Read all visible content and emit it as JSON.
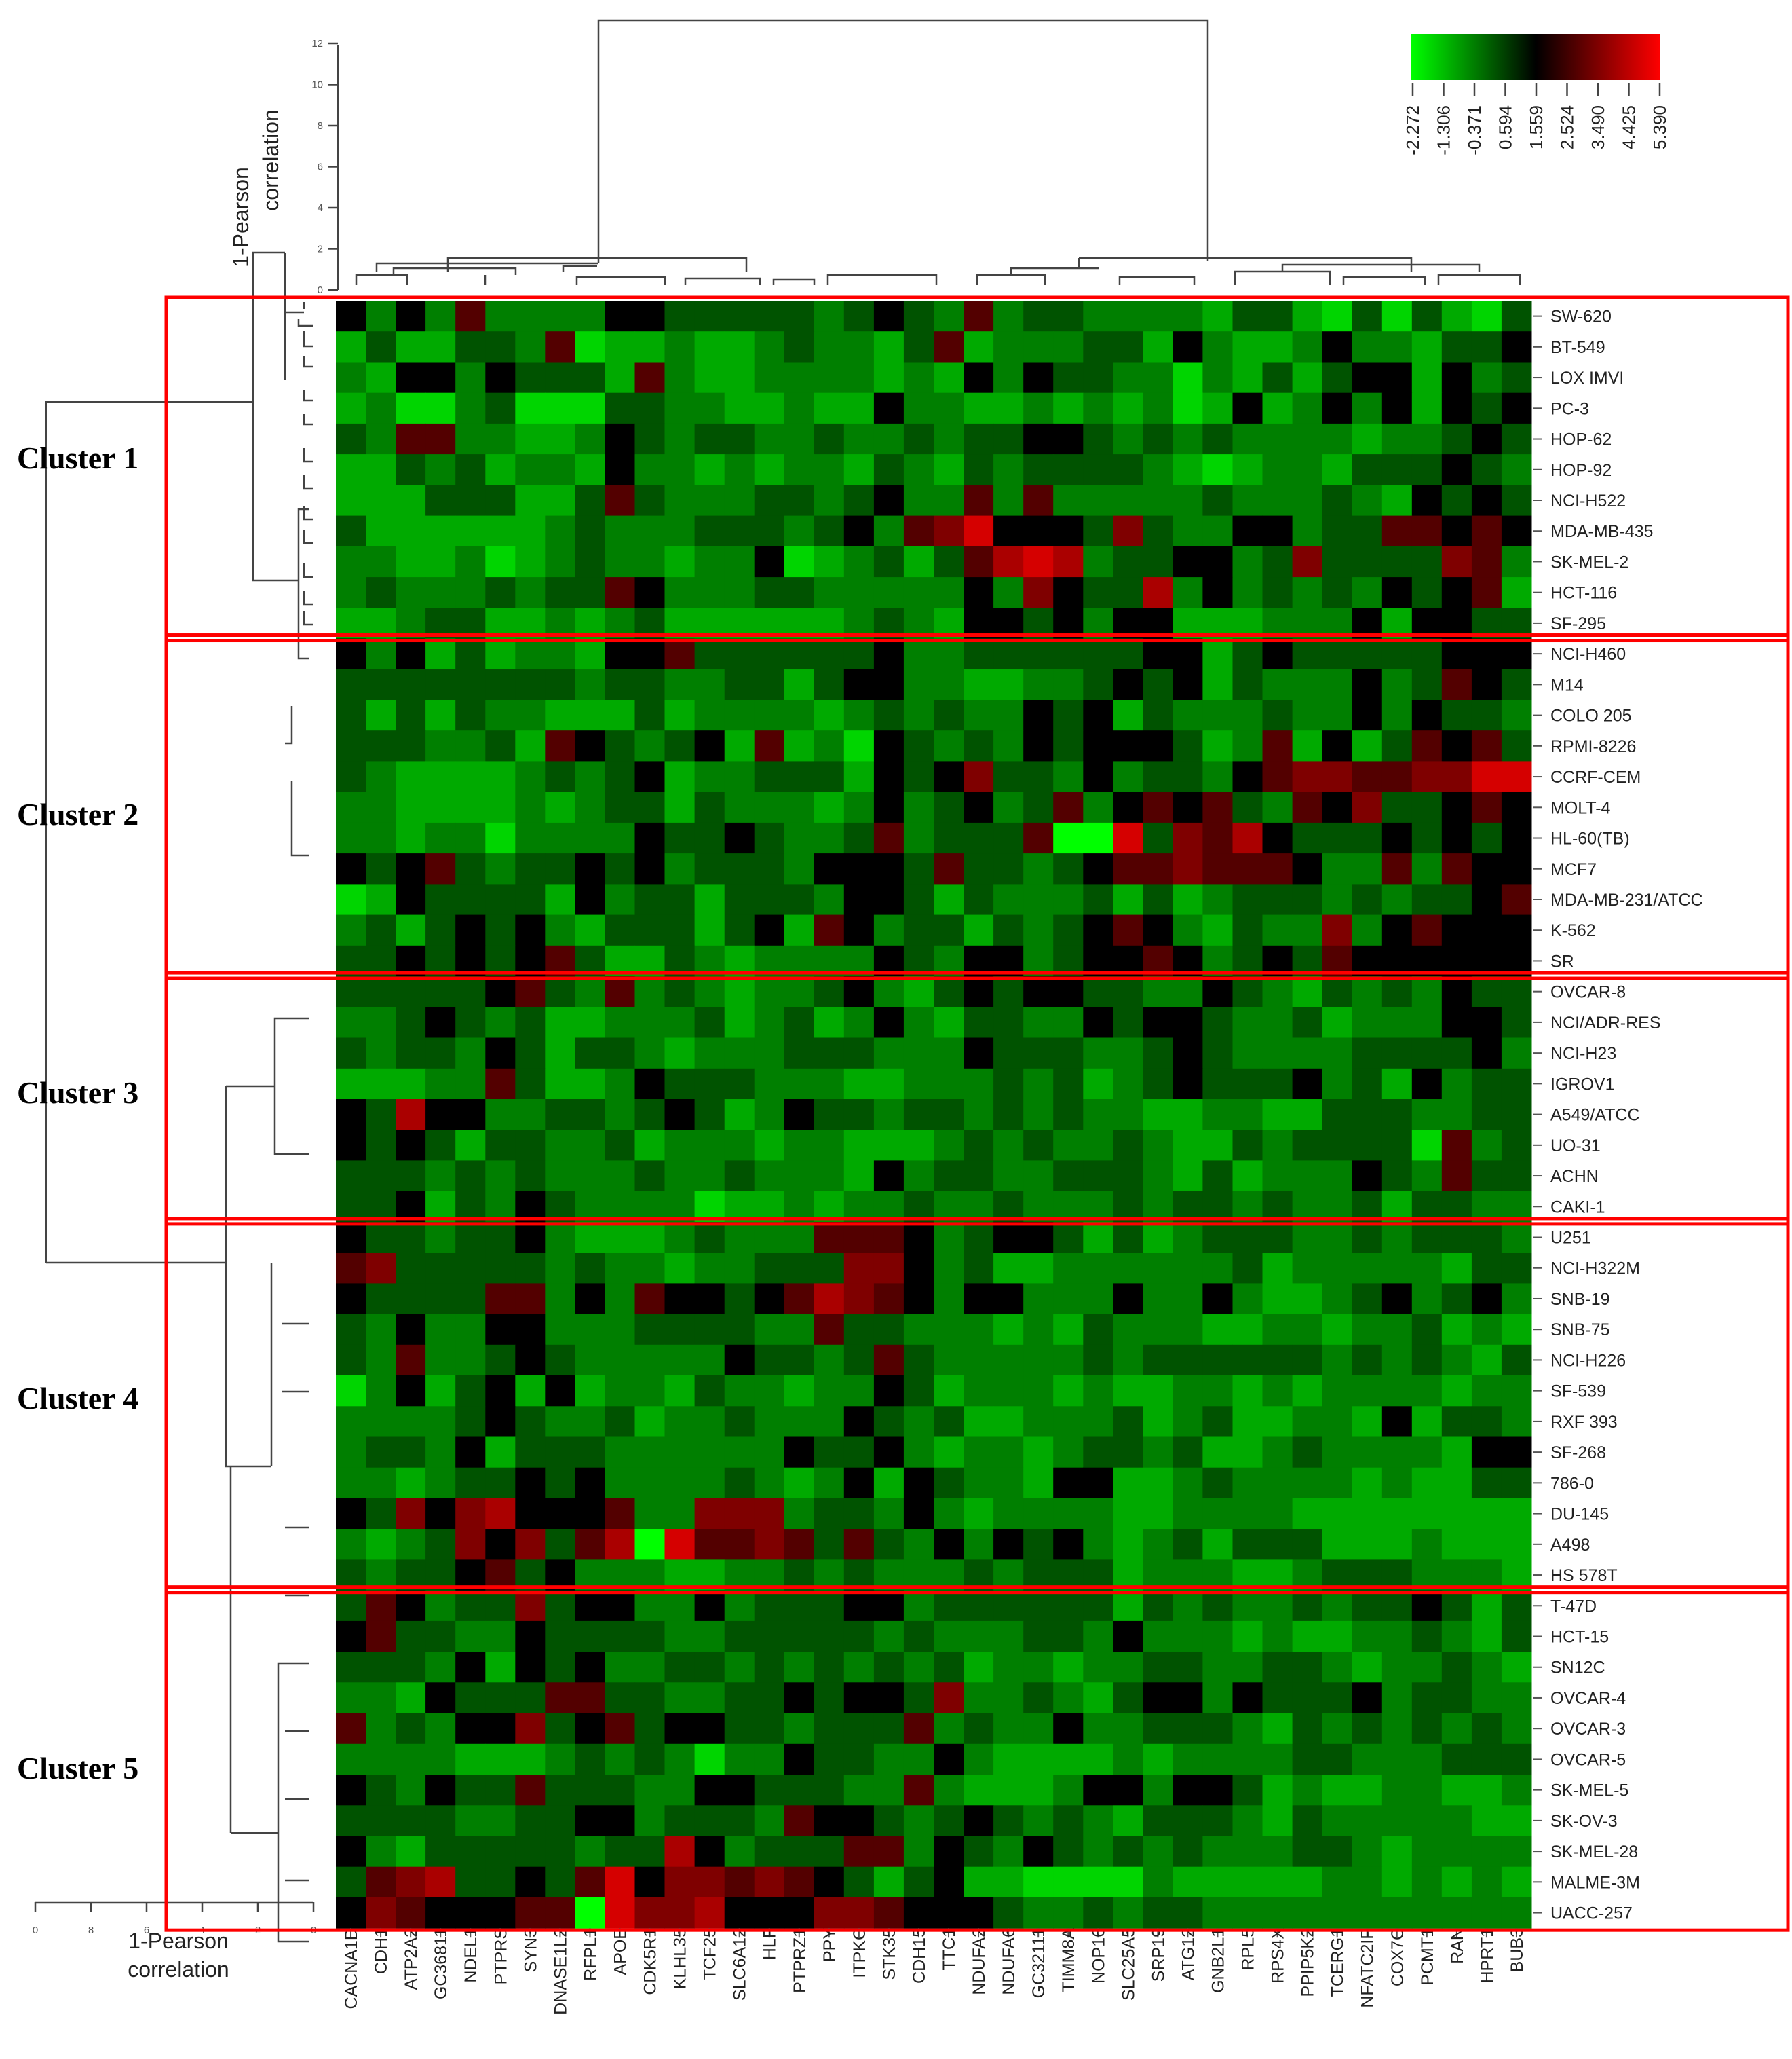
{
  "chart_data": {
    "type": "heatmap",
    "title": "",
    "xlabel": "",
    "ylabel": "",
    "columns": [
      "CACNA1D",
      "CDH1",
      "ATP2A2",
      "GC36811",
      "NDEL1",
      "PTPRS",
      "SYN3",
      "DNASE1L2",
      "RFPL1",
      "APOE",
      "CDK5R1",
      "KLHL35",
      "TCF25",
      "SLC6A12",
      "HLF",
      "PTPRZ1",
      "PPY",
      "ITPKC",
      "STK35",
      "CDH15",
      "TTC1",
      "NDUFA2",
      "NDUFA6",
      "GC32111",
      "TIMM8A",
      "NOP16",
      "SLC25A5",
      "SRP19",
      "ATG12",
      "GNB2L1",
      "RPL5",
      "RPS4X",
      "PPIP5K2",
      "TCERG1",
      "NFATC2IP",
      "COX7C",
      "PCMT1",
      "RAN",
      "HPRT1",
      "BUB3"
    ],
    "rows": [
      "SW-620",
      "BT-549",
      "LOX IMVI",
      "PC-3",
      "HOP-62",
      "HOP-92",
      "NCI-H522",
      "MDA-MB-435",
      "SK-MEL-2",
      "HCT-116",
      "SF-295",
      "NCI-H460",
      "M14",
      "COLO 205",
      "RPMI-8226",
      "CCRF-CEM",
      "MOLT-4",
      "HL-60(TB)",
      "MCF7",
      "MDA-MB-231/ATCC",
      "K-562",
      "SR",
      "OVCAR-8",
      "NCI/ADR-RES",
      "NCI-H23",
      "IGROV1",
      "A549/ATCC",
      "UO-31",
      "ACHN",
      "CAKI-1",
      "U251",
      "NCI-H322M",
      "SNB-19",
      "SNB-75",
      "NCI-H226",
      "SF-539",
      "RXF 393",
      "SF-268",
      "786-0",
      "DU-145",
      "A498",
      "HS 578T",
      "T-47D",
      "HCT-15",
      "SN12C",
      "OVCAR-4",
      "OVCAR-3",
      "OVCAR-5",
      "SK-MEL-5",
      "SK-OV-3",
      "SK-MEL-28",
      "MALME-3M",
      "UACC-257"
    ],
    "clusters": [
      {
        "name": "Cluster 1",
        "start": 0,
        "end": 10
      },
      {
        "name": "Cluster 2",
        "start": 11,
        "end": 21
      },
      {
        "name": "Cluster 3",
        "start": 22,
        "end": 29
      },
      {
        "name": "Cluster 4",
        "start": 30,
        "end": 41
      },
      {
        "name": "Cluster 5",
        "start": 42,
        "end": 52
      }
    ],
    "colorscale": {
      "colors": [
        "#00ff00",
        "#000000",
        "#ff0000"
      ],
      "min": -2.272,
      "mid": 1.559,
      "max": 5.39,
      "ticks": [
        "-2.272",
        "-1.306",
        "-0.371",
        "0.594",
        "1.559",
        "2.524",
        "3.490",
        "4.425",
        "5.390"
      ]
    },
    "values_scale": "0 = bright green (-2.272), 5 = black (1.559), 10 = bright red (5.390); approximate 0-10 index per cell",
    "values": [
      "5353633335544444345436344333324421414214",
      "2422443612232234332462333442532235332445",
      "3255354442632233332325354433132424552534",
      "2311341114433223225332232323125235352545",
      "4366332235434433433434455434343333233454",
      "2243423325332323324324344443212332444543",
      "2224442246433344345336363333343334325454",
      "4222222343334443453679555474335534466565",
      "3322312343323351234246898344553474444763",
      "3433343446533344333335375448353434354562",
      "2234422323422222234325545355222333525544",
      "5352423325564444445334444445524544444555",
      "4444444434433442455332233454524333534654",
      "4242433222423333234343354524333433535443",
      "4443342654345262315434354555423625246564",
      "4322223434523344425457443534435677667799",
      "3322223234424333235345346356564365744565",
      "3323313333544543346344460094768544454545",
      "5456434454534443555464434566766653363655",
      "1254444253442444355424333424234443434456",
      "3424545324442452653442434565324337356555",
      "4454545642243233335435534556534546555555",
      "4444456436343233453245455443354324343544",
      "3345434223334234235324433545543342333554",
      "4344354244323334443335444334543333444453",
      "2223364223544433322333434234544453425344",
      "5485533443454235443443434332233224443344",
      "5454244334233323322234343343224344441634",
      "4443434333433433325344334443242333543644",
      "4452435433331223233433433343443433424433",
      "5443445322234333666534554242344433434443",
      "6744444343323344477534223333334233333244",
      "5444466353655456876535533353353223453453",
      "4353355333444433644333232433322332334232",
      "4363345433333544346433333434444443434324",
      "1352452523324332335423332322332323333233",
      "3333454334233433354342233342342233252443",
      "3443524443333335445323323443422343333255",
      "3323445453333432352543325522343333232244",
      "5475785556337773443532333322333322222222",
      "3234757468096676464353545323424442223222",
      "4344564533322334343334344423332234443332",
      "4653447455335344455344444424343343445424",
      "5644335444433444443433344353332322334324",
      "4443525453344343434342332334433443233432",
      "3325444664433445455473343245535444534433",
      "6343557456455443444634335334443243434343",
      "3333222343431335443353222232333344333444",
      "5435446444335544433632223553554232233223",
      "4444334455344436554345434324443243333322",
      "5324444434485344466354354343433344323333",
      "4678445469577676542452211113222223323232",
      "5765556609778555776555433434433333333333"
    ]
  },
  "top_dendrogram": {
    "axis_title_line1": "1-Pearson",
    "axis_title_line2": "correlation",
    "ticks": [
      "0",
      "2",
      "4",
      "6",
      "8",
      "10",
      "12"
    ]
  },
  "left_dendrogram": {
    "axis_title_line1": "1-Pearson",
    "axis_title_line2": "correlation",
    "ticks": [
      "0",
      "8",
      "6",
      "4",
      "2",
      "0"
    ]
  },
  "legend": {
    "ticks": [
      "-2.272",
      "-1.306",
      "-0.371",
      "0.594",
      "1.559",
      "2.524",
      "3.490",
      "4.425",
      "5.390"
    ]
  }
}
